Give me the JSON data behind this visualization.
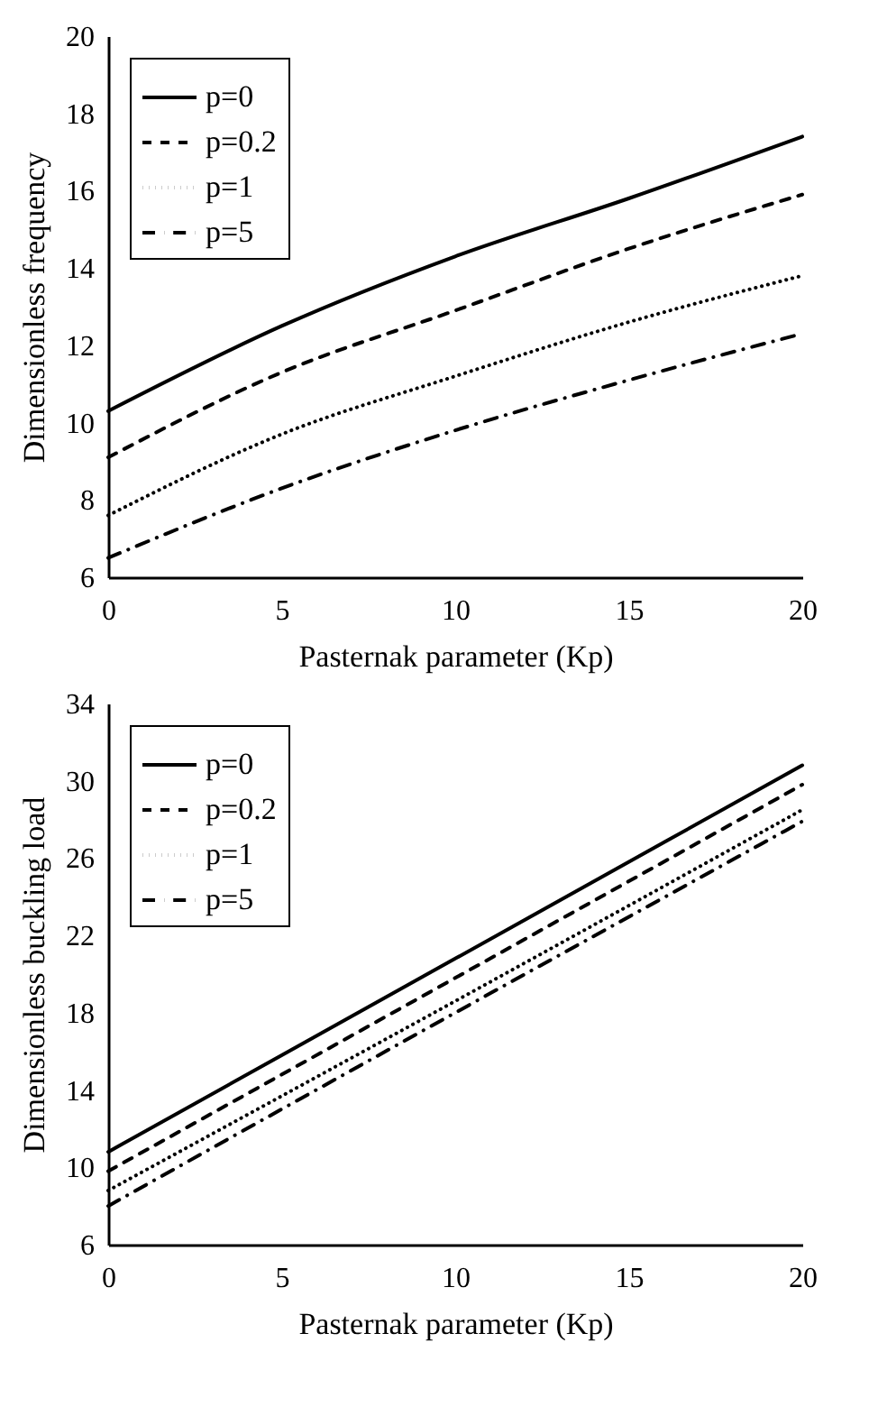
{
  "chart_data": [
    {
      "type": "line",
      "xlabel": "Pasternak parameter (Kp)",
      "ylabel": "Dimensionless frequency",
      "x": [
        0,
        5,
        10,
        15,
        20
      ],
      "xlim": [
        0,
        20
      ],
      "xticks": [
        0,
        5,
        10,
        15,
        20
      ],
      "ylim": [
        6,
        20
      ],
      "yticks": [
        6,
        8,
        10,
        12,
        14,
        16,
        18,
        20
      ],
      "grid": false,
      "legend": "top left",
      "marker": "none",
      "series": [
        {
          "name": "p=0",
          "color": "#000000",
          "line_style": "solid",
          "values": [
            10.3,
            12.5,
            14.3,
            15.8,
            17.4
          ]
        },
        {
          "name": "p=0.2",
          "color": "#000000",
          "line_style": "dashed",
          "values": [
            9.1,
            11.3,
            12.9,
            14.5,
            15.9
          ]
        },
        {
          "name": "p=1",
          "color": "#000000",
          "line_style": "dotted",
          "values": [
            7.6,
            9.7,
            11.2,
            12.6,
            13.8
          ]
        },
        {
          "name": "p=5",
          "color": "#000000",
          "line_style": "dashdot",
          "values": [
            6.5,
            8.3,
            9.8,
            11.1,
            12.3
          ]
        }
      ]
    },
    {
      "type": "line",
      "xlabel": "Pasternak parameter (Kp)",
      "ylabel": "Dimensionless buckling load",
      "x": [
        0,
        10,
        20
      ],
      "xlim": [
        0,
        20
      ],
      "xticks": [
        0,
        5,
        10,
        15,
        20
      ],
      "ylim": [
        6,
        34
      ],
      "yticks": [
        6,
        10,
        14,
        18,
        22,
        26,
        30,
        34
      ],
      "grid": false,
      "legend": "top left",
      "marker": "none",
      "series": [
        {
          "name": "p=0",
          "color": "#000000",
          "line_style": "solid",
          "values": [
            10.8,
            20.8,
            30.8
          ]
        },
        {
          "name": "p=0.2",
          "color": "#000000",
          "line_style": "dashed",
          "values": [
            9.8,
            19.8,
            29.8
          ]
        },
        {
          "name": "p=1",
          "color": "#000000",
          "line_style": "dotted",
          "values": [
            8.8,
            18.6,
            28.5
          ]
        },
        {
          "name": "p=5",
          "color": "#000000",
          "line_style": "dashdot",
          "values": [
            8.0,
            18.0,
            27.9
          ]
        }
      ]
    }
  ]
}
